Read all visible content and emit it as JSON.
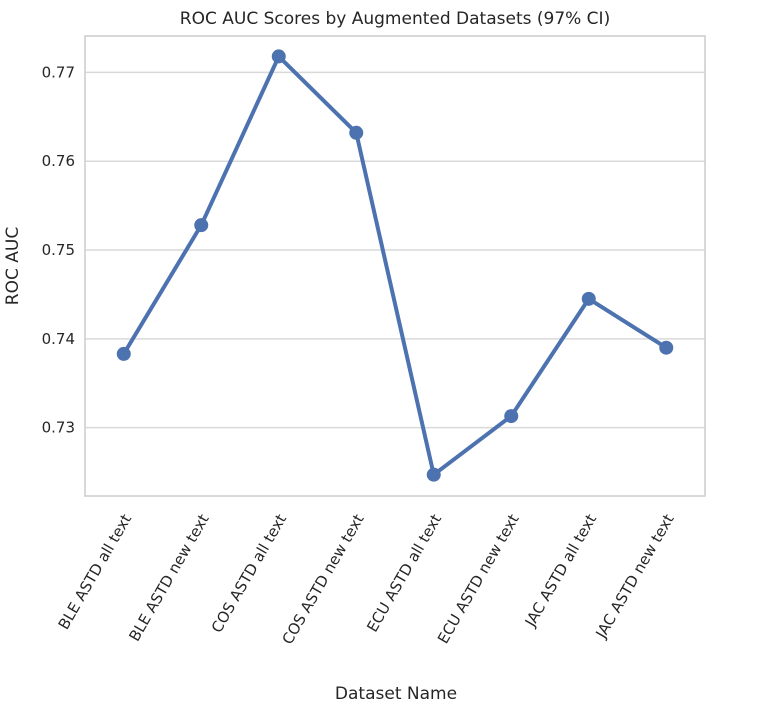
{
  "chart_data": {
    "type": "line",
    "title": "ROC AUC Scores by Augmented Datasets (97% CI)",
    "xlabel": "Dataset Name",
    "ylabel": "ROC AUC",
    "categories": [
      "BLE ASTD  all text",
      "BLE ASTD  new text",
      "COS ASTD  all text",
      "COS ASTD  new text",
      "ECU ASTD  all text",
      "ECU ASTD  new text",
      "JAC ASTD  all text",
      "JAC ASTD  new text"
    ],
    "series": [
      {
        "values": [
          0.7383,
          0.7528,
          0.7718,
          0.7632,
          0.7247,
          0.7313,
          0.7445,
          0.739
        ]
      }
    ],
    "ylim": [
      0.7223,
      0.7741
    ],
    "yticks": [
      0.73,
      0.74,
      0.75,
      0.76,
      0.77
    ],
    "ytick_labels": [
      "0.73",
      "0.74",
      "0.75",
      "0.76",
      "0.77"
    ],
    "grid": "horizontal",
    "colors": {
      "line": "#4c72b0",
      "grid": "#d9d9d9",
      "frame": "#cccccc"
    }
  }
}
